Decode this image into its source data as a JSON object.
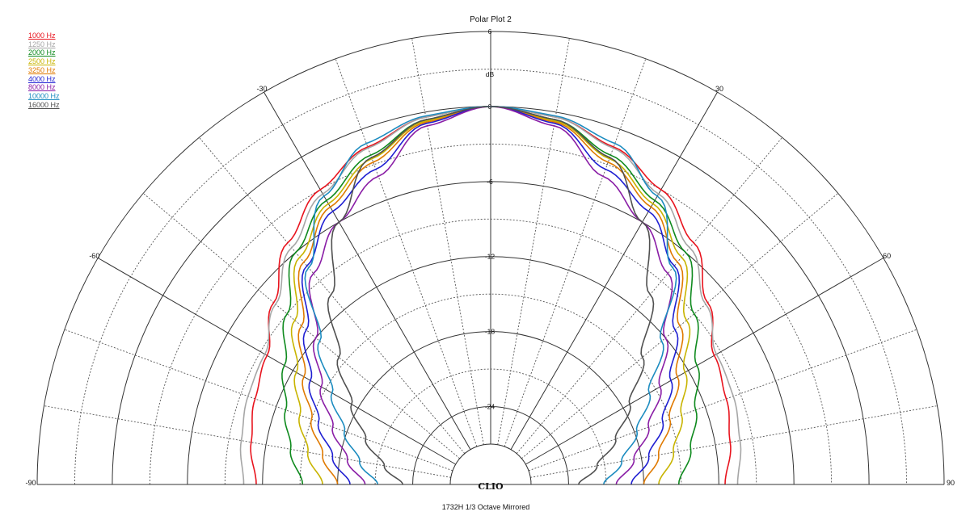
{
  "chart_data": {
    "type": "polar",
    "title": "Polar Plot 2",
    "footer": "1732H  1/3 Octave  Mirrored",
    "logo": "CLIO",
    "radial_unit": "dB",
    "radial_range": [
      -27,
      6
    ],
    "radial_tick_labels": [
      "6",
      "0",
      "-6",
      "-12",
      "-18",
      "-24"
    ],
    "angle_range": [
      -90,
      90
    ],
    "angle_tick_labels": [
      "-90",
      "-60",
      "-30",
      "30",
      "60",
      "90"
    ],
    "series": [
      {
        "name": "1000 Hz",
        "color": "#e8141e",
        "angles": [
          0,
          10,
          20,
          30,
          40,
          50,
          60,
          70,
          80,
          90
        ],
        "values": [
          0,
          -0.4,
          -1.5,
          -3.0,
          -5.0,
          -7.6,
          -9.6,
          -10.2,
          -10.8,
          -11.5
        ]
      },
      {
        "name": "1250 Hz",
        "color": "#a6a6a6",
        "angles": [
          0,
          10,
          20,
          30,
          40,
          50,
          60,
          70,
          80,
          90
        ],
        "values": [
          0,
          -0.4,
          -1.6,
          -3.4,
          -5.5,
          -7.8,
          -9.4,
          -9.6,
          -10.0,
          -10.5
        ]
      },
      {
        "name": "2000 Hz",
        "color": "#0f8a1e",
        "angles": [
          0,
          10,
          20,
          30,
          40,
          50,
          60,
          70,
          80,
          90
        ],
        "values": [
          0,
          -0.6,
          -2.2,
          -4.0,
          -6.0,
          -9.0,
          -11.2,
          -12.8,
          -14.0,
          -15.2
        ]
      },
      {
        "name": "2500 Hz",
        "color": "#c8b400",
        "angles": [
          0,
          10,
          20,
          30,
          40,
          50,
          60,
          70,
          80,
          90
        ],
        "values": [
          0,
          -0.7,
          -2.5,
          -4.3,
          -6.5,
          -9.8,
          -12.3,
          -14.0,
          -15.4,
          -16.8
        ]
      },
      {
        "name": "3250 Hz",
        "color": "#e07a00",
        "angles": [
          0,
          10,
          20,
          30,
          40,
          50,
          60,
          70,
          80,
          90
        ],
        "values": [
          0,
          -0.8,
          -2.8,
          -4.6,
          -7.0,
          -10.5,
          -13.0,
          -15.0,
          -16.6,
          -18.0
        ]
      },
      {
        "name": "4000 Hz",
        "color": "#1f1fd2",
        "angles": [
          0,
          10,
          20,
          30,
          40,
          50,
          60,
          70,
          80,
          90
        ],
        "values": [
          0,
          -0.9,
          -3.4,
          -5.0,
          -7.4,
          -11.0,
          -13.6,
          -15.6,
          -17.4,
          -19.0
        ]
      },
      {
        "name": "8000 Hz",
        "color": "#8a1ea6",
        "angles": [
          0,
          10,
          20,
          30,
          40,
          50,
          60,
          70,
          80,
          90
        ],
        "values": [
          0,
          -1.1,
          -4.0,
          -6.0,
          -8.2,
          -12.0,
          -14.6,
          -16.8,
          -18.6,
          -20.2
        ]
      },
      {
        "name": "10000 Hz",
        "color": "#1c8cc0",
        "angles": [
          0,
          10,
          20,
          30,
          40,
          50,
          60,
          70,
          80,
          90
        ],
        "values": [
          0,
          -0.3,
          -1.2,
          -3.6,
          -7.6,
          -12.4,
          -15.6,
          -17.8,
          -19.6,
          -21.2
        ]
      },
      {
        "name": "16000 Hz",
        "color": "#505050",
        "angles": [
          0,
          10,
          20,
          30,
          40,
          50,
          60,
          70,
          80,
          90
        ],
        "values": [
          0,
          -0.6,
          -2.4,
          -6.0,
          -10.4,
          -14.4,
          -17.4,
          -19.6,
          -21.6,
          -23.2
        ]
      }
    ],
    "legend_position": "top-left",
    "grid": true
  }
}
